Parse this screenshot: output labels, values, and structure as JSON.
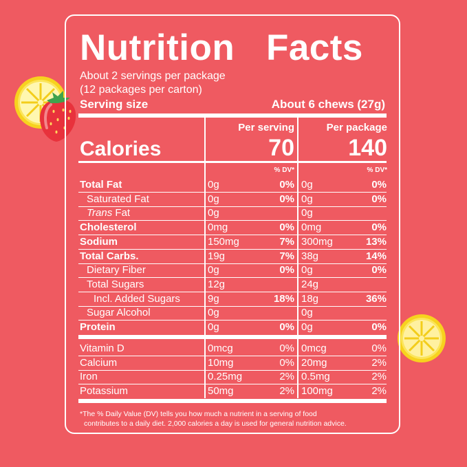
{
  "panel": {
    "title": "Nutrition   Facts",
    "servings_line": "About 2 servings per package",
    "packages_line": "(12 packages per carton)",
    "serving_size_label": "Serving size",
    "serving_size_value": "About 6 chews (27g)"
  },
  "columns": {
    "per_serving": "Per serving",
    "per_package": "Per package",
    "dv_header": "% DV*"
  },
  "calories": {
    "label": "Calories",
    "per_serving": "70",
    "per_package": "140"
  },
  "nutrients": [
    {
      "name": "Total Fat",
      "s_amt": "0g",
      "s_dv": "0%",
      "p_amt": "0g",
      "p_dv": "0%"
    },
    {
      "name": "Saturated Fat",
      "s_amt": "0g",
      "s_dv": "0%",
      "p_amt": "0g",
      "p_dv": "0%"
    },
    {
      "name_italic": "Trans",
      "name_rest": " Fat",
      "s_amt": "0g",
      "s_dv": "",
      "p_amt": "0g",
      "p_dv": ""
    },
    {
      "name": "Cholesterol",
      "s_amt": "0mg",
      "s_dv": "0%",
      "p_amt": "0mg",
      "p_dv": "0%"
    },
    {
      "name": "Sodium",
      "s_amt": "150mg",
      "s_dv": "7%",
      "p_amt": "300mg",
      "p_dv": "13%"
    },
    {
      "name": "Total Carbs.",
      "s_amt": "19g",
      "s_dv": "7%",
      "p_amt": "38g",
      "p_dv": "14%"
    },
    {
      "name": "Dietary Fiber",
      "s_amt": "0g",
      "s_dv": "0%",
      "p_amt": "0g",
      "p_dv": "0%"
    },
    {
      "name": "Total Sugars",
      "s_amt": "12g",
      "s_dv": "",
      "p_amt": "24g",
      "p_dv": ""
    },
    {
      "name": "Incl. Added Sugars",
      "s_amt": "9g",
      "s_dv": "18%",
      "p_amt": "18g",
      "p_dv": "36%"
    },
    {
      "name": "Sugar Alcohol",
      "s_amt": "0g",
      "s_dv": "",
      "p_amt": "0g",
      "p_dv": ""
    },
    {
      "name": "Protein",
      "s_amt": "0g",
      "s_dv": "0%",
      "p_amt": "0g",
      "p_dv": "0%"
    }
  ],
  "vitamins": [
    {
      "name": "Vitamin D",
      "s_amt": "0mcg",
      "s_dv": "0%",
      "p_amt": "0mcg",
      "p_dv": "0%"
    },
    {
      "name": "Calcium",
      "s_amt": "10mg",
      "s_dv": "0%",
      "p_amt": "20mg",
      "p_dv": "2%"
    },
    {
      "name": "Iron",
      "s_amt": "0.25mg",
      "s_dv": "2%",
      "p_amt": "0.5mg",
      "p_dv": "2%"
    },
    {
      "name": "Potassium",
      "s_amt": "50mg",
      "s_dv": "2%",
      "p_amt": "100mg",
      "p_dv": "2%"
    }
  ],
  "footnote_line1": "*The % Daily Value (DV) tells you how much a nutrient in a serving of food",
  "footnote_line2": "contributes to a daily diet. 2,000 calories a day is used for general nutrition advice.",
  "colors": {
    "background": "#ef5a61",
    "text": "#ffffff",
    "lemon": "#f7d21e",
    "strawberry": "#e8323c"
  },
  "decorations": [
    "lemon-slice-icon",
    "strawberry-icon"
  ]
}
